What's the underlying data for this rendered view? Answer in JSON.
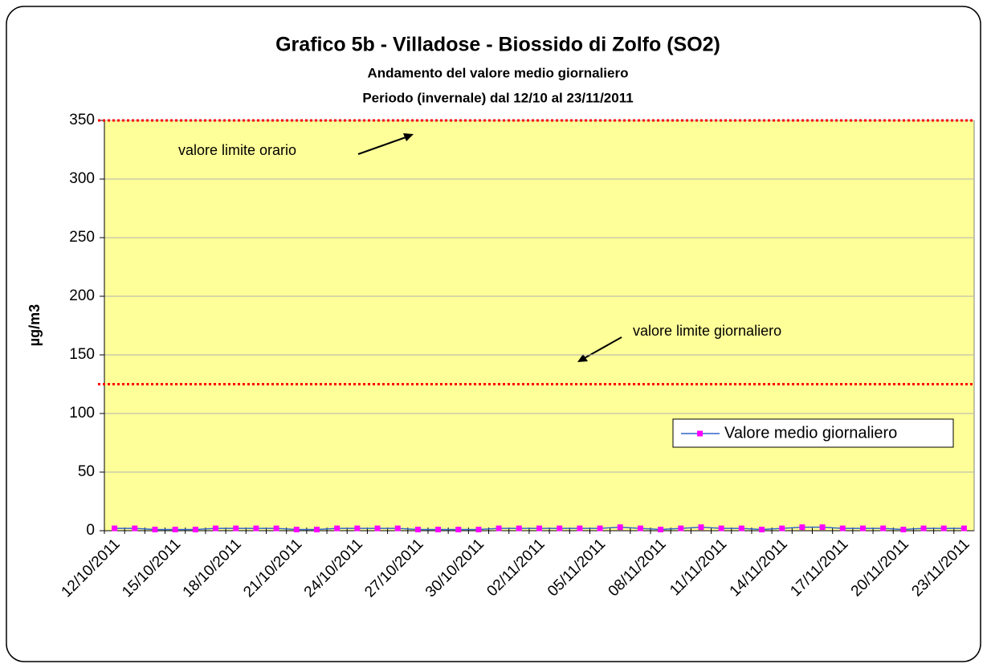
{
  "chart_data": {
    "type": "line",
    "title": "Grafico 5b - Villadose - Biossido di Zolfo (SO2)",
    "subtitle": [
      "Andamento del valore medio giornaliero",
      "Periodo (invernale) dal 12/10 al 23/11/2011"
    ],
    "y_label": "µg/m3",
    "categories": [
      "12/10/2011",
      null,
      null,
      "15/10/2011",
      null,
      null,
      "18/10/2011",
      null,
      null,
      "21/10/2011",
      null,
      null,
      "24/10/2011",
      null,
      null,
      "27/10/2011",
      null,
      null,
      "30/10/2011",
      null,
      null,
      "02/11/2011",
      null,
      null,
      "05/11/2011",
      null,
      null,
      "08/11/2011",
      null,
      null,
      "11/11/2011",
      null,
      null,
      "14/11/2011",
      null,
      null,
      "17/11/2011",
      null,
      null,
      "20/11/2011",
      null,
      null,
      "23/11/2011"
    ],
    "series": [
      {
        "name": "Valore medio giornaliero",
        "color": "#3366cc",
        "marker_color": "#ff00ff",
        "values": [
          2,
          2,
          1,
          1,
          1,
          2,
          2,
          2,
          2,
          1,
          1,
          2,
          2,
          2,
          2,
          1,
          1,
          1,
          1,
          2,
          2,
          2,
          2,
          2,
          2,
          3,
          2,
          1,
          2,
          3,
          2,
          2,
          1,
          2,
          3,
          3,
          2,
          2,
          2,
          1,
          2,
          2,
          2
        ]
      }
    ],
    "reference_lines": [
      {
        "name": "valore limite orario",
        "value": 350,
        "color": "#ff0000"
      },
      {
        "name": "valore limite giornaliero",
        "value": 125,
        "color": "#ff0000"
      }
    ],
    "ylim": [
      0,
      350
    ],
    "yticks": [
      0,
      50,
      100,
      150,
      200,
      250,
      300,
      350
    ],
    "grid": true,
    "background": "#ffff99",
    "legend": "right"
  }
}
